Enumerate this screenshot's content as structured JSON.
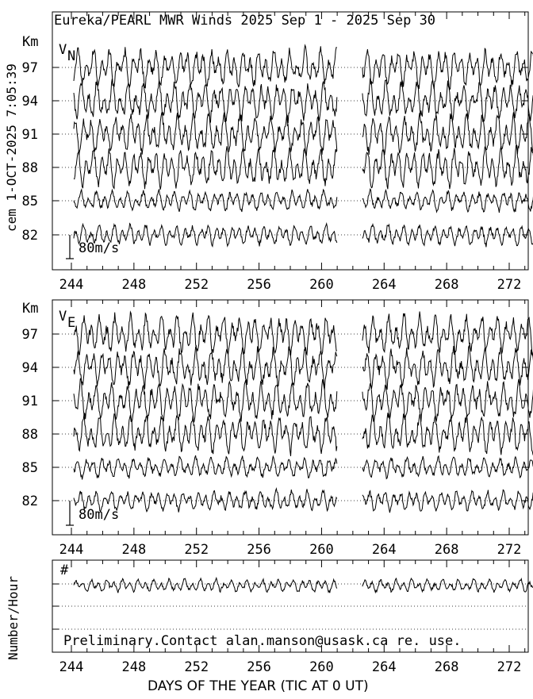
{
  "title": "Eureka/PEARL MWR Winds 2025 Sep  1 - 2025 Sep 30",
  "timestamp_label": "cem 1-OCT-2025  7:05:39",
  "y_side_label": "Number/Hour",
  "x_axis_label": "DAYS OF THE YEAR (TIC AT 0 UT)",
  "footnote": "Preliminary.Contact alan.manson@usask.ca re. use.",
  "chart_data": [
    {
      "type": "line",
      "component": "VN",
      "component_label": "V",
      "component_subscript": "N",
      "y_unit": "Km",
      "altitudes": [
        "97",
        "94",
        "91",
        "88",
        "85",
        "82"
      ],
      "scale_bar_label": "80m/s",
      "scale_bar_value": 80,
      "x_ticks": [
        "244",
        "248",
        "252",
        "256",
        "260",
        "264",
        "268",
        "272"
      ],
      "x_range": [
        244,
        274
      ],
      "data_gap_days": [
        261,
        262.6
      ]
    },
    {
      "type": "line",
      "component": "VE",
      "component_label": "V",
      "component_subscript": "E",
      "y_unit": "Km",
      "altitudes": [
        "97",
        "94",
        "91",
        "88",
        "85",
        "82"
      ],
      "scale_bar_label": "80m/s",
      "scale_bar_value": 80,
      "x_ticks": [
        "244",
        "248",
        "252",
        "256",
        "260",
        "264",
        "268",
        "272"
      ],
      "x_range": [
        244,
        274
      ],
      "data_gap_days": [
        261,
        262.6
      ]
    },
    {
      "type": "line",
      "component": "count",
      "series_label": "#",
      "x_ticks": [
        "244",
        "248",
        "252",
        "256",
        "260",
        "264",
        "268",
        "272"
      ],
      "x_range": [
        244,
        274
      ],
      "data_gap_days": [
        261,
        262.6
      ]
    }
  ]
}
